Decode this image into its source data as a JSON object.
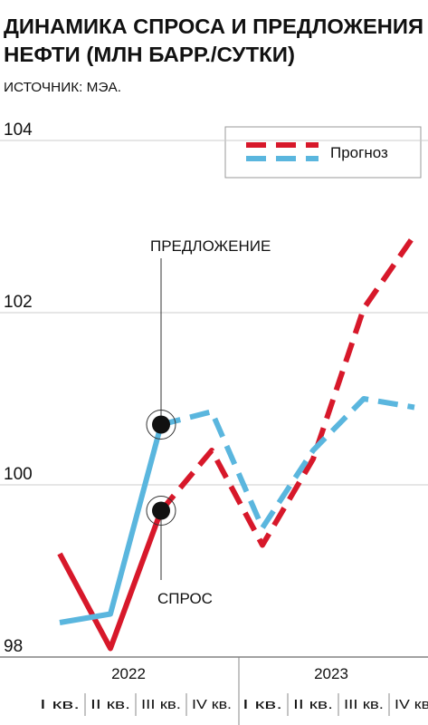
{
  "chart_data": {
    "type": "line",
    "title": [
      "ДИНАМИКА СПРОСА И ПРЕДЛОЖЕНИЯ",
      "НЕФТИ (МЛН БАРР./СУТКИ)"
    ],
    "subtitle": "ИСТОЧНИК: МЭА.",
    "categories": [
      "I кв.",
      "II кв.",
      "III кв.",
      "IV кв.",
      "I кв.",
      "II кв.",
      "III кв.",
      "IV кв."
    ],
    "groups": [
      "2022",
      "2023"
    ],
    "series": [
      {
        "name": "СПРОС",
        "color": "#d7182a",
        "values": [
          99.2,
          98.1,
          99.7,
          100.4,
          99.3,
          100.3,
          102.05,
          102.9
        ]
      },
      {
        "name": "ПРЕДЛОЖЕНИЕ",
        "color": "#5ab6de",
        "values": [
          98.4,
          98.5,
          100.7,
          100.85,
          99.5,
          100.4,
          101.0,
          100.9
        ]
      }
    ],
    "forecast_from_index": 2,
    "legend": {
      "label": "Прогноз",
      "position": "top-right"
    },
    "ylim": [
      98,
      104
    ],
    "yticks": [
      98,
      100,
      102,
      104
    ],
    "grid": true
  }
}
